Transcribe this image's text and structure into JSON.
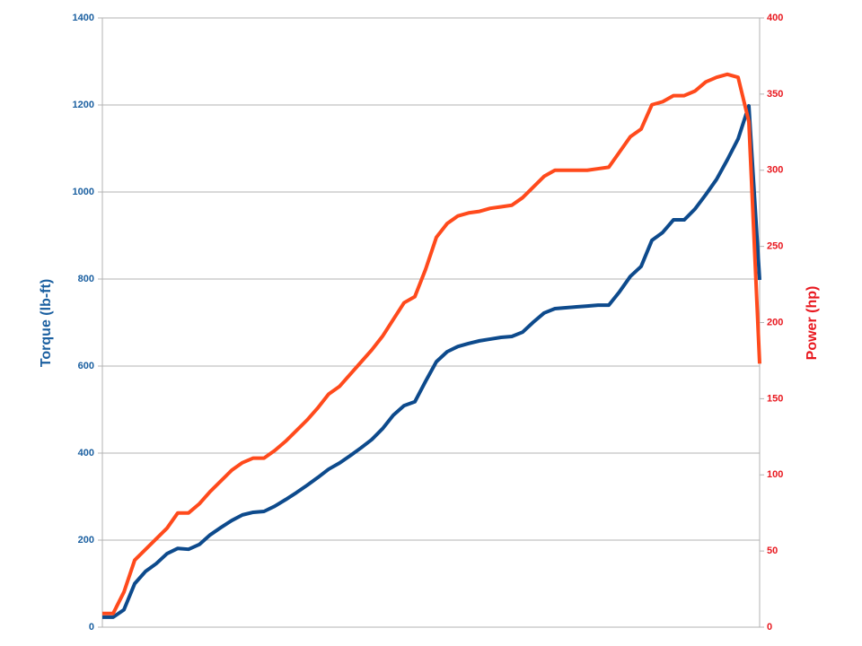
{
  "chart_data": {
    "type": "line",
    "categories": [
      null,
      null,
      null,
      null,
      null,
      null,
      null,
      null,
      null,
      null,
      null,
      null,
      null,
      null,
      null,
      null,
      null,
      null,
      null,
      null,
      null,
      null,
      null,
      null,
      null,
      null,
      null,
      null,
      null,
      null,
      null,
      null,
      null,
      null,
      null,
      null,
      null,
      null,
      null,
      null,
      null,
      null,
      null,
      null,
      null,
      null,
      null,
      null,
      null,
      null,
      null,
      null,
      null,
      null,
      null,
      null,
      null,
      null,
      null,
      null,
      null,
      null
    ],
    "ylabel": "Torque (lb-ft)",
    "y2label": "Power (hp)",
    "ylim": [
      0,
      1400
    ],
    "yticks": [
      0,
      200,
      400,
      600,
      800,
      1000,
      1200,
      1400
    ],
    "y2lim": [
      0,
      400
    ],
    "y2ticks": [
      0,
      50,
      100,
      150,
      200,
      250,
      300,
      350,
      400
    ],
    "grid": true,
    "ycolor": "#1a5fa0",
    "y2color": "#e8171e",
    "series": [
      {
        "color": "#0d4a8c",
        "values": [
          23,
          23,
          40,
          100,
          128,
          146,
          169,
          181,
          179,
          190,
          212,
          229,
          245,
          258,
          264,
          266,
          278,
          293,
          309,
          326,
          344,
          363,
          377,
          394,
          412,
          431,
          456,
          487,
          509,
          518,
          565,
          610,
          633,
          645,
          652,
          658,
          662,
          666,
          668,
          678,
          701,
          722,
          732,
          734,
          736,
          738,
          740,
          740,
          771,
          806,
          829,
          889,
          907,
          936,
          936,
          961,
          994,
          1029,
          1074,
          1122,
          1198,
          798
        ]
      },
      {
        "color": "#ff4a1c",
        "axis": "y2",
        "values": [
          9,
          9,
          23,
          44,
          51,
          58,
          65,
          75,
          75,
          81,
          89,
          96,
          103,
          108,
          111,
          111,
          116,
          122,
          129,
          136,
          144,
          153,
          158,
          166,
          174,
          182,
          191,
          202,
          213,
          217,
          235,
          256,
          265,
          270,
          272,
          273,
          275,
          276,
          277,
          282,
          289,
          296,
          300,
          300,
          300,
          300,
          301,
          302,
          312,
          322,
          327,
          343,
          345,
          349,
          349,
          352,
          358,
          361,
          363,
          361,
          332,
          173
        ]
      }
    ]
  }
}
